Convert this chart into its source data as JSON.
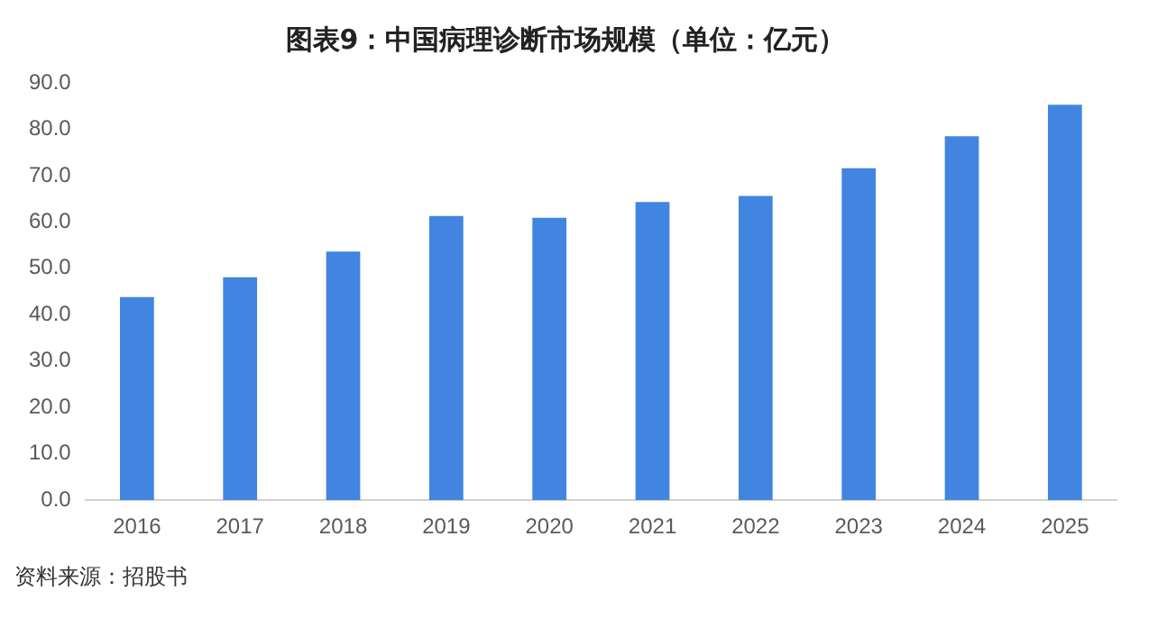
{
  "chart_data": {
    "type": "bar",
    "title": "图表9：中国病理诊断市场规模（单位：亿元）",
    "categories": [
      "2016",
      "2017",
      "2018",
      "2019",
      "2020",
      "2021",
      "2022",
      "2023",
      "2024",
      "2025"
    ],
    "values": [
      43.8,
      48.1,
      53.6,
      61.3,
      60.9,
      64.3,
      65.6,
      71.6,
      78.5,
      85.3
    ],
    "color": "#4285e0",
    "ylim": [
      0,
      90
    ],
    "yticks": [
      {
        "value": 0,
        "label": "0.0"
      },
      {
        "value": 10,
        "label": "10.0"
      },
      {
        "value": 20,
        "label": "20.0"
      },
      {
        "value": 30,
        "label": "30.0"
      },
      {
        "value": 40,
        "label": "40.0"
      },
      {
        "value": 50,
        "label": "50.0"
      },
      {
        "value": 60,
        "label": "60.0"
      },
      {
        "value": 70,
        "label": "70.0"
      },
      {
        "value": 80,
        "label": "80.0"
      },
      {
        "value": 90,
        "label": "90.0"
      }
    ],
    "grid": false,
    "legend": false,
    "annotations": [
      "资料来源：招股书"
    ]
  }
}
